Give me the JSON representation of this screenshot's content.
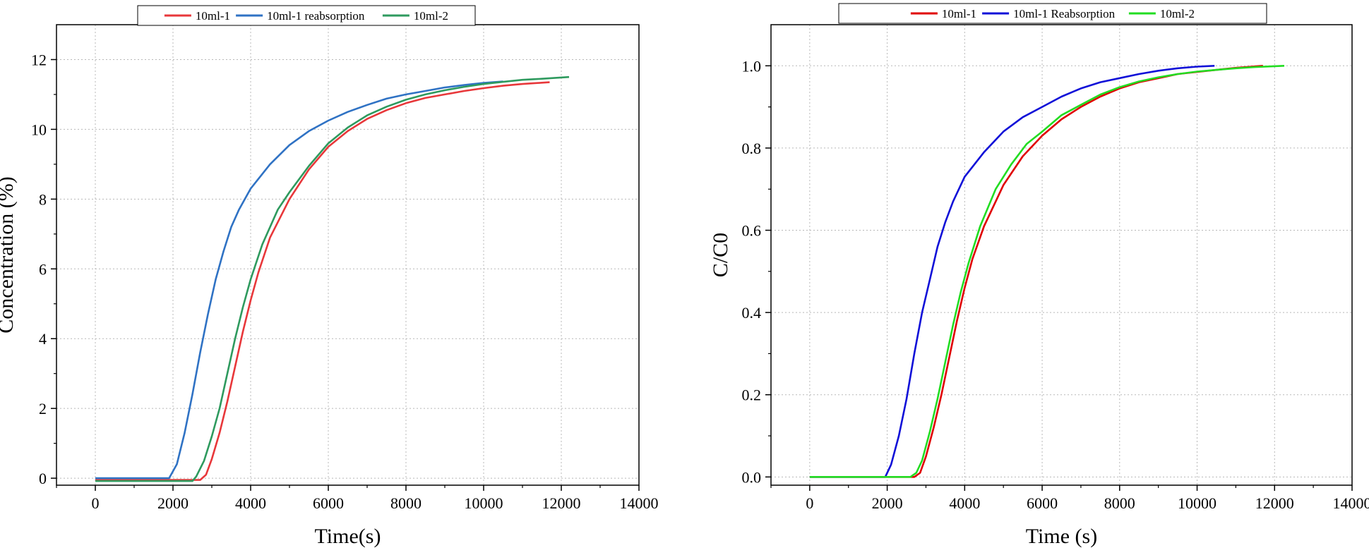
{
  "chart_data": [
    {
      "type": "line",
      "xlabel": "Time(s)",
      "ylabel": "Concentration (%)",
      "xlim": [
        -1000,
        14000
      ],
      "ylim": [
        -0.2,
        13
      ],
      "xticks": [
        0,
        2000,
        4000,
        6000,
        8000,
        10000,
        12000,
        14000
      ],
      "yticks": [
        0,
        2,
        4,
        6,
        8,
        10,
        12
      ],
      "grid": true,
      "legend_position": "top",
      "series": [
        {
          "name": "10ml-1",
          "color": "#e8373a",
          "x": [
            0,
            2000,
            2700,
            2850,
            3000,
            3200,
            3400,
            3600,
            3800,
            4000,
            4200,
            4500,
            5000,
            5500,
            6000,
            6500,
            7000,
            7500,
            8000,
            8500,
            9000,
            9500,
            10000,
            10500,
            11000,
            11700
          ],
          "y": [
            -0.05,
            -0.05,
            -0.05,
            0.1,
            0.55,
            1.3,
            2.2,
            3.2,
            4.2,
            5.1,
            5.9,
            6.9,
            8.0,
            8.85,
            9.5,
            9.95,
            10.3,
            10.55,
            10.75,
            10.9,
            11.0,
            11.1,
            11.18,
            11.25,
            11.3,
            11.35
          ]
        },
        {
          "name": "10ml-1 reabsorption",
          "color": "#2f72c4",
          "x": [
            0,
            500,
            1000,
            1500,
            1900,
            2100,
            2300,
            2500,
            2700,
            2900,
            3100,
            3300,
            3500,
            3700,
            4000,
            4500,
            5000,
            5500,
            6000,
            6500,
            7000,
            7500,
            8000,
            8500,
            9000,
            9500,
            10000,
            10500
          ],
          "y": [
            0.0,
            0.0,
            0.0,
            0.0,
            0.0,
            0.4,
            1.3,
            2.4,
            3.6,
            4.7,
            5.7,
            6.5,
            7.2,
            7.7,
            8.3,
            9.0,
            9.55,
            9.95,
            10.25,
            10.5,
            10.7,
            10.88,
            11.0,
            11.1,
            11.2,
            11.27,
            11.33,
            11.37
          ]
        },
        {
          "name": "10ml-2",
          "color": "#2e9a5e",
          "x": [
            0,
            1000,
            2500,
            2600,
            2800,
            3000,
            3200,
            3400,
            3600,
            3800,
            4000,
            4300,
            4700,
            5000,
            5500,
            6000,
            6500,
            7000,
            7500,
            8000,
            8500,
            9000,
            9500,
            10000,
            10500,
            11000,
            11500,
            12200
          ],
          "y": [
            -0.08,
            -0.08,
            -0.08,
            0.05,
            0.5,
            1.2,
            2.0,
            3.0,
            4.0,
            4.9,
            5.7,
            6.7,
            7.7,
            8.2,
            8.95,
            9.6,
            10.05,
            10.4,
            10.65,
            10.85,
            11.0,
            11.12,
            11.22,
            11.3,
            11.36,
            11.42,
            11.45,
            11.5
          ]
        }
      ]
    },
    {
      "type": "line",
      "xlabel": "Time (s)",
      "ylabel": "C/C0",
      "xlim": [
        -1000,
        14000
      ],
      "ylim": [
        -0.02,
        1.1
      ],
      "xticks": [
        0,
        2000,
        4000,
        6000,
        8000,
        10000,
        12000,
        14000
      ],
      "yticks": [
        0.0,
        0.2,
        0.4,
        0.6,
        0.8,
        1.0
      ],
      "grid": true,
      "legend_position": "top",
      "series": [
        {
          "name": "10ml-1",
          "color": "#e00000",
          "x": [
            0,
            2000,
            2700,
            2850,
            3000,
            3200,
            3400,
            3600,
            3800,
            4000,
            4200,
            4500,
            5000,
            5500,
            6000,
            6500,
            7000,
            7500,
            8000,
            8500,
            9000,
            9500,
            10000,
            10500,
            11000,
            11700
          ],
          "y": [
            0.0,
            0.0,
            0.0,
            0.01,
            0.05,
            0.12,
            0.2,
            0.29,
            0.38,
            0.46,
            0.53,
            0.61,
            0.71,
            0.78,
            0.83,
            0.87,
            0.9,
            0.925,
            0.945,
            0.96,
            0.97,
            0.98,
            0.985,
            0.99,
            0.995,
            1.0
          ]
        },
        {
          "name": "10ml-1 Reabsorption",
          "color": "#1010d8",
          "x": [
            0,
            500,
            1000,
            1500,
            1950,
            2100,
            2300,
            2500,
            2700,
            2900,
            3100,
            3300,
            3500,
            3700,
            4000,
            4500,
            5000,
            5500,
            6000,
            6500,
            7000,
            7500,
            8000,
            8500,
            9000,
            9500,
            10000,
            10450
          ],
          "y": [
            0.0,
            0.0,
            0.0,
            0.0,
            0.0,
            0.03,
            0.1,
            0.19,
            0.3,
            0.4,
            0.48,
            0.56,
            0.62,
            0.67,
            0.73,
            0.79,
            0.84,
            0.875,
            0.9,
            0.925,
            0.945,
            0.96,
            0.97,
            0.98,
            0.988,
            0.994,
            0.998,
            1.0
          ]
        },
        {
          "name": "10ml-2",
          "color": "#22dd22",
          "x": [
            0,
            1000,
            2600,
            2750,
            2900,
            3100,
            3300,
            3500,
            3700,
            3900,
            4100,
            4400,
            4800,
            5200,
            5600,
            6000,
            6500,
            7000,
            7500,
            8000,
            8500,
            9000,
            9500,
            10000,
            10500,
            11000,
            11500,
            12250
          ],
          "y": [
            0.0,
            0.0,
            0.0,
            0.01,
            0.04,
            0.11,
            0.19,
            0.28,
            0.37,
            0.45,
            0.52,
            0.61,
            0.7,
            0.76,
            0.81,
            0.84,
            0.88,
            0.905,
            0.93,
            0.948,
            0.962,
            0.972,
            0.98,
            0.986,
            0.99,
            0.994,
            0.997,
            1.0
          ]
        }
      ]
    }
  ]
}
